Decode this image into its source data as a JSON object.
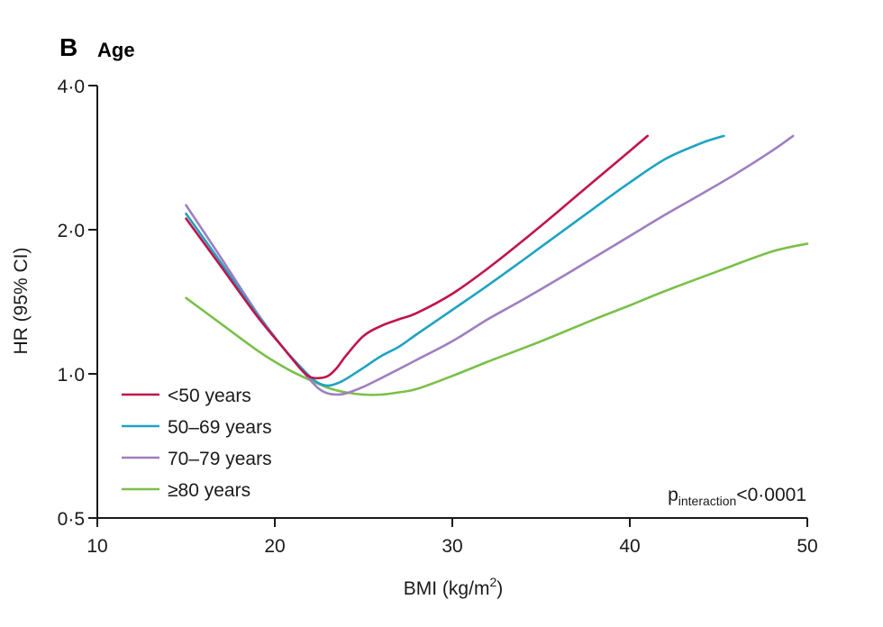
{
  "panel": {
    "letter": "B",
    "title": "Age"
  },
  "annotation": {
    "p_prefix": "p",
    "p_subscript": "interaction",
    "p_value": "<0·0001"
  },
  "chart_data": {
    "type": "line",
    "xlabel_main": "BMI (kg/m",
    "xlabel_sup": "2",
    "xlabel_end": ")",
    "ylabel": "HR (95% CI)",
    "xlim": [
      10,
      50
    ],
    "ylim": [
      0.5,
      4.0
    ],
    "yscale": "log",
    "xticks": [
      10,
      20,
      30,
      40,
      50
    ],
    "xtick_labels": [
      "10",
      "20",
      "30",
      "40",
      "50"
    ],
    "yticks": [
      0.5,
      1.0,
      2.0,
      4.0
    ],
    "ytick_labels": [
      "0·5",
      "1·0",
      "2·0",
      "4·0"
    ],
    "grid": false,
    "legend_position": "bottom-left",
    "series": [
      {
        "name": "<50 years",
        "color": "#c0144b",
        "x": [
          15,
          17,
          19,
          20.5,
          21.5,
          22,
          22.5,
          23,
          23.5,
          24,
          25,
          26,
          27,
          28,
          30,
          32,
          34,
          36,
          38,
          40,
          41
        ],
        "y": [
          2.11,
          1.67,
          1.32,
          1.13,
          1.02,
          0.985,
          0.98,
          0.99,
          1.03,
          1.09,
          1.2,
          1.26,
          1.3,
          1.34,
          1.47,
          1.66,
          1.9,
          2.19,
          2.53,
          2.92,
          3.14
        ]
      },
      {
        "name": "50–69 years",
        "color": "#1fa3c2",
        "x": [
          15,
          17,
          19,
          20.5,
          21.5,
          22,
          22.5,
          23,
          23.5,
          24,
          25,
          26,
          27,
          28,
          30,
          32,
          34,
          36,
          38,
          40,
          42,
          44,
          45.3
        ],
        "y": [
          2.16,
          1.7,
          1.33,
          1.13,
          1.03,
          0.985,
          0.955,
          0.945,
          0.955,
          0.975,
          1.03,
          1.09,
          1.14,
          1.21,
          1.36,
          1.53,
          1.73,
          1.96,
          2.22,
          2.51,
          2.81,
          3.03,
          3.14
        ]
      },
      {
        "name": "70–79 years",
        "color": "#a07ec0",
        "x": [
          15,
          17,
          19,
          20.5,
          21.5,
          22,
          22.5,
          23,
          23.5,
          24,
          25,
          26,
          28,
          30,
          32,
          34,
          36,
          38,
          40,
          42,
          44,
          46,
          48,
          49.2
        ],
        "y": [
          2.25,
          1.74,
          1.34,
          1.13,
          1.02,
          0.97,
          0.93,
          0.91,
          0.905,
          0.91,
          0.94,
          0.98,
          1.07,
          1.17,
          1.3,
          1.43,
          1.58,
          1.75,
          1.94,
          2.15,
          2.37,
          2.62,
          2.92,
          3.14
        ]
      },
      {
        "name": "≥80 years",
        "color": "#7ac04a",
        "x": [
          15,
          17,
          19,
          20,
          21,
          22,
          23,
          24,
          25,
          26,
          27,
          28,
          30,
          32,
          35,
          38,
          40,
          42,
          45,
          48,
          50
        ],
        "y": [
          1.44,
          1.27,
          1.12,
          1.06,
          1.01,
          0.97,
          0.935,
          0.915,
          0.905,
          0.905,
          0.915,
          0.93,
          0.99,
          1.06,
          1.17,
          1.3,
          1.39,
          1.49,
          1.64,
          1.8,
          1.87
        ]
      }
    ]
  }
}
